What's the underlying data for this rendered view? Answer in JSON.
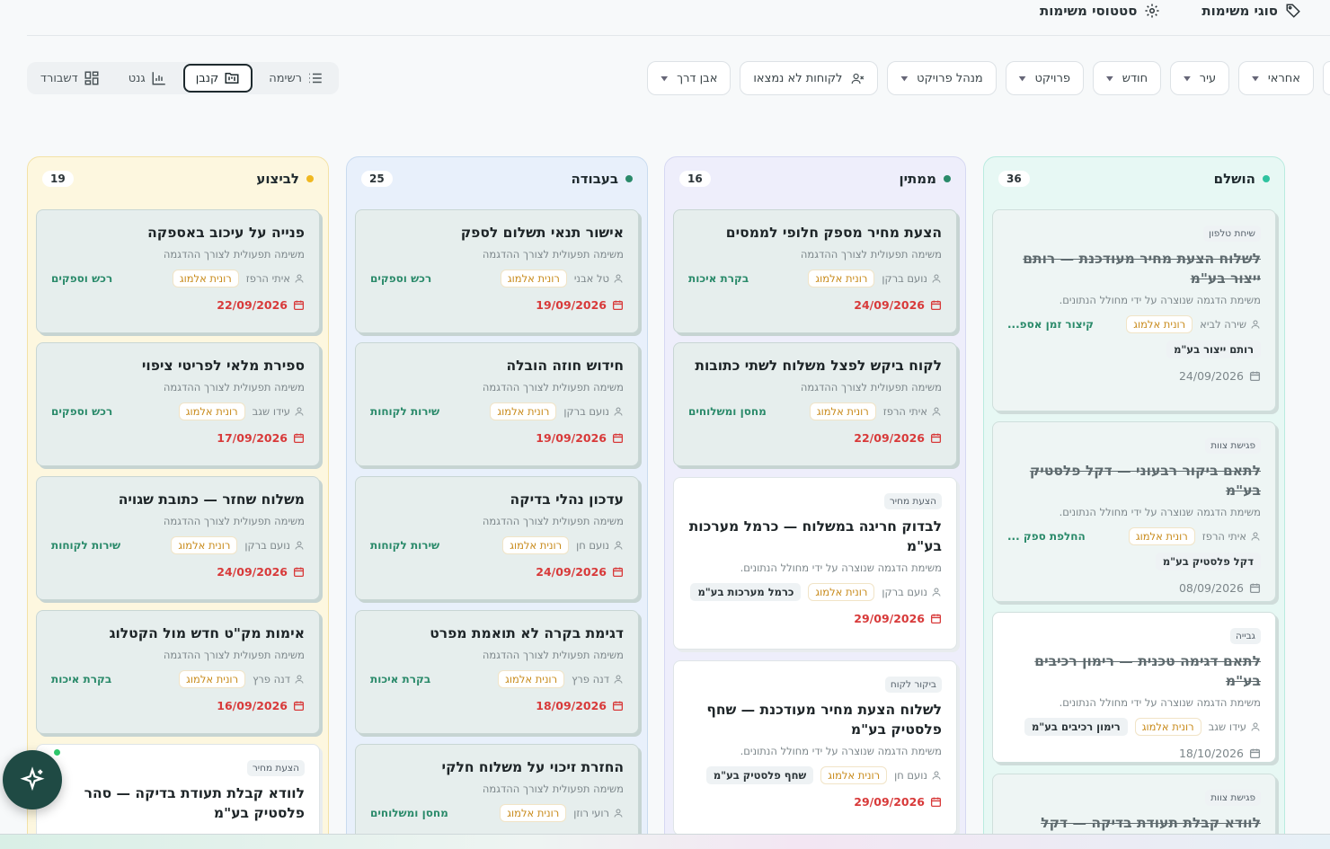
{
  "topnav": {
    "task_types": "סוגי משימות",
    "task_statuses": "סטטוסי משימות"
  },
  "filters": {
    "responsible": "אחראי",
    "city": "עיר",
    "month": "חודש",
    "project": "פרויקט",
    "project_manager": "מנהל פרויקט",
    "missing_customers": "לקוחות לא נמצאו",
    "milestone": "אבן דרך"
  },
  "views": {
    "list": "רשימה",
    "kanban": "קנבן",
    "gantt": "גנט",
    "dashboard": "דשבורד"
  },
  "columns": [
    {
      "title": "הושלם",
      "count": "36",
      "dot": "#2fc3a0",
      "bg": "#e7f8f4",
      "border": "#b9ebdf",
      "cards": [
        {
          "badge": "שיחת טלפון",
          "title": "לשלוח הצעת מחיר מעודכנת — רותם ייצור בע\"מ",
          "sub": "משימת הדגמה שנוצרה על ידי מחולל הנתונים.",
          "owner": "שירה לביא",
          "pill": "רונית אלמוג",
          "dept": "קיצור זמן אספ...",
          "tag": "רותם ייצור בע\"מ",
          "date": "24/09/2026"
        },
        {
          "badge": "פגישת צוות",
          "title": "לתאם ביקור רבעוני — דקל פלסטיק בע\"מ",
          "sub": "משימת הדגמה שנוצרה על ידי מחולל הנתונים.",
          "owner": "איתי הרפז",
          "pill": "רונית אלמוג",
          "dept": "החלפת ספק ...",
          "tag": "דקל פלסטיק בע\"מ",
          "date": "08/09/2026"
        },
        {
          "badge": "גבייה",
          "title": "לתאם דגימה טכנית — רימון רכיבים בע\"מ",
          "sub": "משימת הדגמה שנוצרה על ידי מחולל הנתונים.",
          "owner": "עידו שגב",
          "pill": "רונית אלמוג",
          "tag": "רימון רכיבים בע\"מ",
          "date": "18/10/2026"
        },
        {
          "badge": "פגישת צוות",
          "title": "לוודא קבלת תעודת בדיקה — דקל"
        }
      ]
    },
    {
      "title": "ממתין",
      "count": "16",
      "dot": "#2a8a6a",
      "bg": "#eeeefb",
      "border": "#d6d8f2",
      "cards": [
        {
          "title": "הצעת מחיר מספק חלופי לממסים",
          "sub": "משימה תפעולית לצורך ההדגמה",
          "owner": "נועם ברקן",
          "pill": "רונית אלמוג",
          "dept": "בקרת איכות",
          "date": "24/09/2026"
        },
        {
          "title": "לקוח ביקש לפצל משלוח לשתי כתובות",
          "sub": "משימה תפעולית לצורך ההדגמה",
          "owner": "איתי הרפז",
          "pill": "רונית אלמוג",
          "dept": "מחסן ומשלוחים",
          "date": "22/09/2026"
        },
        {
          "badge": "הצעת מחיר",
          "title": "לבדוק חריגה במשלוח — כרמל מערכות בע\"מ",
          "sub": "משימת הדגמה שנוצרה על ידי מחולל הנתונים.",
          "owner": "נועם ברקן",
          "pill": "רונית אלמוג",
          "tag": "כרמל מערכות בע\"מ",
          "date": "29/09/2026"
        },
        {
          "badge": "ביקור לקוח",
          "title": "לשלוח הצעת מחיר מעודכנת — שחף פלסטיק בע\"מ",
          "sub": "משימת הדגמה שנוצרה על ידי מחולל הנתונים.",
          "owner": "נועם חן",
          "pill": "רונית אלמוג",
          "tag": "שחף פלסטיק בע\"מ",
          "date": "29/09/2026"
        }
      ]
    },
    {
      "title": "בעבודה",
      "count": "25",
      "dot": "#2a8a6a",
      "bg": "#e8f0fb",
      "border": "#c9dbef",
      "cards": [
        {
          "title": "אישור תנאי תשלום לספק",
          "sub": "משימה תפעולית לצורך ההדגמה",
          "owner": "טל אבני",
          "pill": "רונית אלמוג",
          "dept": "רכש וספקים",
          "date": "19/09/2026"
        },
        {
          "title": "חידוש חוזה הובלה",
          "sub": "משימה תפעולית לצורך ההדגמה",
          "owner": "נועם ברקן",
          "pill": "רונית אלמוג",
          "dept": "שירות לקוחות",
          "date": "19/09/2026"
        },
        {
          "title": "עדכון נהלי בדיקה",
          "sub": "משימה תפעולית לצורך ההדגמה",
          "owner": "נועם חן",
          "pill": "רונית אלמוג",
          "dept": "שירות לקוחות",
          "date": "24/09/2026"
        },
        {
          "title": "דגימת בקרה לא תואמת מפרט",
          "sub": "משימה תפעולית לצורך ההדגמה",
          "owner": "דנה פרץ",
          "pill": "רונית אלמוג",
          "dept": "בקרת איכות",
          "date": "18/09/2026"
        },
        {
          "title": "החזרת זיכוי על משלוח חלקי",
          "sub": "משימה תפעולית לצורך ההדגמה",
          "owner": "רועי רוזן",
          "pill": "רונית אלמוג",
          "dept": "מחסן ומשלוחים"
        }
      ]
    },
    {
      "title": "לביצוע",
      "count": "19",
      "dot": "#f0b820",
      "bg": "#fdf7df",
      "border": "#f3e2a6",
      "cards": [
        {
          "title": "פנייה על עיכוב באספקה",
          "sub": "משימה תפעולית לצורך ההדגמה",
          "owner": "איתי הרפז",
          "pill": "רונית אלמוג",
          "dept": "רכש וספקים",
          "date": "22/09/2026"
        },
        {
          "title": "ספירת מלאי לפריטי ציפוי",
          "sub": "משימה תפעולית לצורך ההדגמה",
          "owner": "עידו שגב",
          "pill": "רונית אלמוג",
          "dept": "רכש וספקים",
          "date": "17/09/2026"
        },
        {
          "title": "משלוח שחזר — כתובת שגויה",
          "sub": "משימה תפעולית לצורך ההדגמה",
          "owner": "נועם ברקן",
          "pill": "רונית אלמוג",
          "dept": "שירות לקוחות",
          "date": "24/09/2026"
        },
        {
          "title": "אימות מק\"ט חדש מול הקטלוג",
          "sub": "משימה תפעולית לצורך ההדגמה",
          "owner": "דנה פרץ",
          "pill": "רונית אלמוג",
          "dept": "בקרת איכות",
          "date": "16/09/2026"
        },
        {
          "badge": "הצעת מחיר",
          "title": "לוודא קבלת תעודת בדיקה — סהר פלסטיק בע\"מ"
        }
      ]
    }
  ]
}
